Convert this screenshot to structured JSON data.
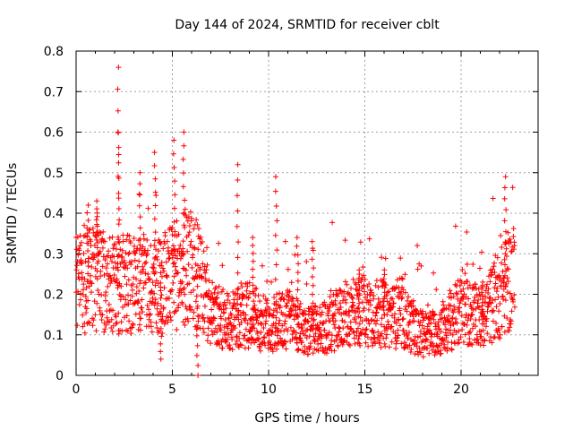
{
  "chart_data": {
    "type": "scatter",
    "title": "Day 144 of 2024, SRMTID for receiver cblt",
    "xlabel": "GPS time / hours",
    "ylabel": "SRMTID / TECUs",
    "xlim": [
      0,
      24
    ],
    "ylim": [
      0,
      0.8
    ],
    "xticks": [
      0,
      5,
      10,
      15,
      20
    ],
    "yticks": [
      0,
      0.1,
      0.2,
      0.3,
      0.4,
      0.5,
      0.6,
      0.7,
      0.8
    ],
    "xtick_labels": [
      "0",
      "5",
      "10",
      "15",
      "20"
    ],
    "ytick_labels": [
      "0",
      "0.1",
      "0.2",
      "0.3",
      "0.4",
      "0.5",
      "0.6",
      "0.7",
      "0.8"
    ],
    "grid": true,
    "marker": "+",
    "series": [
      {
        "name": "SRMTID",
        "color": "#ff0000",
        "trend": [
          [
            0.0,
            0.22
          ],
          [
            1.0,
            0.24
          ],
          [
            2.0,
            0.22
          ],
          [
            3.0,
            0.23
          ],
          [
            4.0,
            0.22
          ],
          [
            5.0,
            0.24
          ],
          [
            6.0,
            0.28
          ],
          [
            6.5,
            0.22
          ],
          [
            7.0,
            0.15
          ],
          [
            8.0,
            0.13
          ],
          [
            9.0,
            0.15
          ],
          [
            10.0,
            0.12
          ],
          [
            11.0,
            0.14
          ],
          [
            12.0,
            0.11
          ],
          [
            13.0,
            0.12
          ],
          [
            14.0,
            0.15
          ],
          [
            15.0,
            0.16
          ],
          [
            16.0,
            0.15
          ],
          [
            17.0,
            0.14
          ],
          [
            18.0,
            0.1
          ],
          [
            19.0,
            0.11
          ],
          [
            20.0,
            0.16
          ],
          [
            21.0,
            0.14
          ],
          [
            22.0,
            0.2
          ],
          [
            22.8,
            0.25
          ]
        ],
        "spikes": [
          [
            2.2,
            0.76
          ],
          [
            2.2,
            0.6
          ],
          [
            5.1,
            0.58
          ],
          [
            5.6,
            0.6
          ],
          [
            4.1,
            0.55
          ],
          [
            3.3,
            0.5
          ],
          [
            8.4,
            0.52
          ],
          [
            10.4,
            0.49
          ],
          [
            22.3,
            0.49
          ],
          [
            4.4,
            0.04
          ],
          [
            6.3,
            0.0
          ],
          [
            1.1,
            0.43
          ],
          [
            0.6,
            0.42
          ],
          [
            14.7,
            0.26
          ],
          [
            16.0,
            0.26
          ],
          [
            21.1,
            0.23
          ],
          [
            11.5,
            0.34
          ],
          [
            12.3,
            0.33
          ],
          [
            9.2,
            0.34
          ]
        ]
      }
    ]
  }
}
